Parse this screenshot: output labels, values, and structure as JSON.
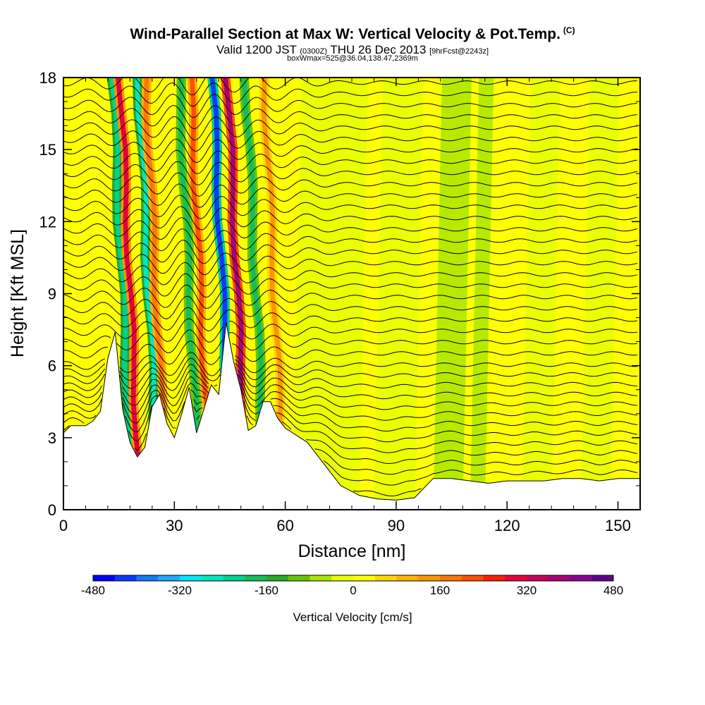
{
  "titles": {
    "line1": "Wind-Parallel Section at Max W: Vertical Velocity & Pot.Temp.",
    "copyright": "(C)",
    "line2_a": "Valid 1200 JST",
    "line2_b": "(0300Z)",
    "line2_c": "THU 26 Dec 2013",
    "line2_d": "[9hrFcst@2243z]",
    "line3": "boxWmax=525@36.04,138.47,2369m"
  },
  "colorbar": {
    "title": "Vertical Velocity [cm/s]",
    "labels": [
      "-480",
      "-320",
      "-160",
      "0",
      "160",
      "320",
      "480"
    ],
    "colors": [
      "#0000ff",
      "#0a3cff",
      "#1478ff",
      "#1eaaff",
      "#00e6ff",
      "#00e6be",
      "#00d28c",
      "#14be5a",
      "#28aa28",
      "#64c800",
      "#aae600",
      "#e6ff00",
      "#ffff00",
      "#ffd700",
      "#ffb400",
      "#ff9600",
      "#ff7800",
      "#ff5000",
      "#ff1e00",
      "#e6003c",
      "#c8005a",
      "#aa0078",
      "#8c0096",
      "#64008c"
    ]
  },
  "chart_data": {
    "type": "heatmap",
    "title": "Wind-Parallel Section at Max W: Vertical Velocity & Pot.Temp.",
    "xlabel": "Distance [nm]",
    "ylabel": "Height [Kft MSL]",
    "xlim": [
      0,
      156
    ],
    "ylim": [
      0,
      18
    ],
    "xticks": [
      0,
      30,
      60,
      90,
      120,
      150
    ],
    "yticks": [
      0,
      3,
      6,
      9,
      12,
      15,
      18
    ],
    "colorbar_range": [
      -480,
      480
    ],
    "colorbar_unit": "cm/s",
    "contour_field": "Potential Temperature",
    "terrain_profile": {
      "x": [
        0,
        2,
        4,
        6,
        8,
        10,
        12,
        14,
        16,
        18,
        20,
        22,
        24,
        26,
        28,
        30,
        32,
        34,
        36,
        38,
        40,
        42,
        44,
        46,
        48,
        50,
        52,
        54,
        56,
        58,
        60,
        62,
        64,
        66,
        70,
        75,
        80,
        85,
        90,
        95,
        100,
        105,
        110,
        115,
        120,
        125,
        130,
        135,
        140,
        145,
        150,
        156
      ],
      "y": [
        3.2,
        3.5,
        3.5,
        3.5,
        3.7,
        4.1,
        6.3,
        7.4,
        4.2,
        2.8,
        2.2,
        2.6,
        4.3,
        4.8,
        3.6,
        3.0,
        4.0,
        5.1,
        3.2,
        4.2,
        5.2,
        4.8,
        7.8,
        6.2,
        5.0,
        3.3,
        3.5,
        4.5,
        4.5,
        3.8,
        3.4,
        3.2,
        3.0,
        2.8,
        2.0,
        1.0,
        0.6,
        0.45,
        0.4,
        0.5,
        1.3,
        1.3,
        1.2,
        1.1,
        1.2,
        1.2,
        1.2,
        1.3,
        1.3,
        1.2,
        1.3,
        1.3
      ]
    },
    "velocity_bands": [
      {
        "x": 17,
        "w": -220
      },
      {
        "x": 19,
        "w": 280
      },
      {
        "x": 24,
        "w": -280
      },
      {
        "x": 26,
        "w": 180
      },
      {
        "x": 35,
        "w": -200
      },
      {
        "x": 38,
        "w": 200
      },
      {
        "x": 44,
        "w": -420
      },
      {
        "x": 48,
        "w": 380
      },
      {
        "x": 53,
        "w": -200
      },
      {
        "x": 58,
        "w": 120
      }
    ],
    "max_w": 525
  }
}
